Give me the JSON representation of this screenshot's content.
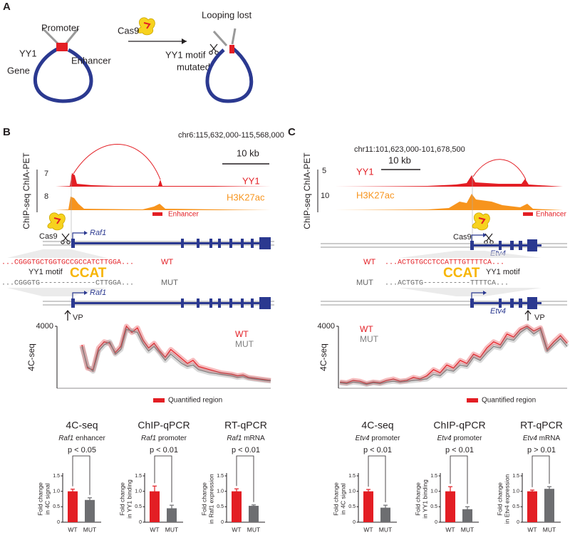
{
  "panel_a": {
    "label": "A",
    "promoter": "Promoter",
    "yy1": "YY1",
    "enhancer": "Enhancer",
    "gene": "Gene",
    "cas9": "Cas9",
    "looping_lost": "Looping lost",
    "motif_mutated": [
      "YY1 motif",
      "mutated"
    ]
  },
  "panel_b": {
    "label": "B",
    "coords": "chr6:115,632,000-115,568,000",
    "scale": "10 kb",
    "track_axis": "ChIP-seq ChIA-PET",
    "tracks": [
      {
        "name": "YY1",
        "scale": "7"
      },
      {
        "name": "H3K27ac",
        "scale": "8"
      }
    ],
    "enhancer": "Enhancer",
    "cas9": "Cas9",
    "gene": [
      "Raf1",
      "Raf1"
    ],
    "wt_label": "WT",
    "mut_label": "MUT",
    "wt_seq": "...CGGGTGCTGGTGCCGCCATCTTGGA...",
    "mut_seq": "...CGGGTG-------------CTTGGA...",
    "motif": "YY1 motif",
    "logo": "CCAT",
    "vp": "VP",
    "quantified": "Quantified region"
  },
  "panel_c": {
    "label": "C",
    "coords": "chr11:101,623,000-101,678,500",
    "scale": "10 kb",
    "track_axis": "ChIP-seq ChIA-PET",
    "tracks": [
      {
        "name": "YY1",
        "scale": "5"
      },
      {
        "name": "H3K27ac",
        "scale": "10"
      }
    ],
    "enhancer": "Enhancer",
    "cas9": "Cas9",
    "gene": [
      "Etv4",
      "Etv4"
    ],
    "wt_label": "WT",
    "mut_label": "MUT",
    "wt_seq": "...ACTGTGCCTCCATTTGTTTTCA...",
    "mut_seq": "...ACTGTG-----------TTTTCA...",
    "motif": "YY1 motif",
    "logo": "CCAT",
    "vp": "VP",
    "quantified": "Quantified region"
  },
  "chart_data": [
    {
      "type": "line",
      "ylabel": "4C-seq",
      "ylim": [
        0,
        4000
      ],
      "yticks": [
        4000
      ],
      "series": [
        {
          "name": "WT",
          "color": "#e31e24",
          "values": [
            2800,
            1300,
            1200,
            2600,
            3000,
            2900,
            2300,
            2700,
            4000,
            3600,
            3900,
            3100,
            2600,
            2900,
            2400,
            2000,
            2500,
            2200,
            1900,
            1600,
            1800,
            1400,
            1300,
            1200,
            1100,
            1000,
            950,
            900,
            800,
            850,
            700,
            650,
            600,
            550,
            500
          ]
        },
        {
          "name": "MUT",
          "color": "#808080",
          "values": [
            2700,
            1400,
            1100,
            2400,
            2800,
            3000,
            2200,
            2500,
            3800,
            3700,
            3600,
            2900,
            2400,
            2700,
            2300,
            1800,
            2200,
            1900,
            1600,
            1400,
            1500,
            1200,
            1100,
            1000,
            950,
            900,
            850,
            800,
            700,
            750,
            650,
            600,
            550,
            500,
            480
          ]
        }
      ]
    },
    {
      "type": "line",
      "ylabel": "4C-seq",
      "ylim": [
        0,
        4000
      ],
      "yticks": [
        4000
      ],
      "series": [
        {
          "name": "WT",
          "color": "#e31e24",
          "values": [
            400,
            350,
            500,
            450,
            300,
            400,
            350,
            500,
            600,
            450,
            500,
            700,
            600,
            800,
            1200,
            1000,
            1500,
            1300,
            1800,
            1600,
            2200,
            2000,
            2600,
            3000,
            2800,
            3500,
            3300,
            3800,
            4000,
            3700,
            3900,
            2500,
            3000,
            3400,
            2900
          ]
        },
        {
          "name": "MUT",
          "color": "#808080",
          "values": [
            350,
            300,
            400,
            350,
            250,
            350,
            300,
            400,
            450,
            400,
            450,
            500,
            550,
            600,
            900,
            800,
            1200,
            1100,
            1500,
            1400,
            2000,
            1800,
            2300,
            2700,
            2600,
            3200,
            3100,
            3600,
            3900,
            3500,
            3800,
            2400,
            2800,
            3200,
            2700
          ]
        }
      ]
    },
    {
      "type": "bar",
      "title": "4C-seq",
      "subtitle_gene": "Raf1",
      "subtitle": "enhancer",
      "annotation": "p < 0.05",
      "ylabel": [
        "Fold change",
        "in 4C signal"
      ],
      "categories": [
        "WT",
        "MUT"
      ],
      "values": [
        1.0,
        0.72
      ],
      "errors": [
        0.07,
        0.07
      ],
      "colors": [
        "#e31e24",
        "#6d6e71"
      ],
      "ylim": [
        0,
        1.5
      ],
      "yticks": [
        0,
        0.5,
        {
          "value": 1,
          "label": "1.0"
        },
        1.5
      ]
    },
    {
      "type": "bar",
      "title": "ChIP-qPCR",
      "subtitle_gene": "Raf1",
      "subtitle": "promoter",
      "annotation": "p < 0.01",
      "ylabel": [
        "Fold change",
        "in YY1 binding"
      ],
      "categories": [
        "WT",
        "MUT"
      ],
      "values": [
        1.0,
        0.45
      ],
      "errors": [
        0.17,
        0.1
      ],
      "colors": [
        "#e31e24",
        "#6d6e71"
      ],
      "ylim": [
        0,
        1.5
      ],
      "yticks": [
        0,
        0.5,
        {
          "value": 1,
          "label": "1.0"
        },
        1.5
      ]
    },
    {
      "type": "bar",
      "title": "RT-qPCR",
      "subtitle_gene": "Raf1",
      "subtitle": "mRNA",
      "annotation": "p < 0.01",
      "ylabel": [
        "Fold change",
        "in Raf1 expression"
      ],
      "categories": [
        "WT",
        "MUT"
      ],
      "values": [
        1.0,
        0.53
      ],
      "errors": [
        0.08,
        0.03
      ],
      "colors": [
        "#e31e24",
        "#6d6e71"
      ],
      "ylim": [
        0,
        1.5
      ],
      "yticks": [
        0,
        0.5,
        {
          "value": 1,
          "label": "1.0"
        },
        1.5
      ]
    },
    {
      "type": "bar",
      "title": "4C-seq",
      "subtitle_gene": "Etv4",
      "subtitle": "promoter",
      "annotation": "p < 0.01",
      "ylabel": [
        "Fold change",
        "in 4C signal"
      ],
      "categories": [
        "WT",
        "MUT"
      ],
      "values": [
        1.0,
        0.47
      ],
      "errors": [
        0.06,
        0.08
      ],
      "colors": [
        "#e31e24",
        "#6d6e71"
      ],
      "ylim": [
        0,
        1.5
      ],
      "yticks": [
        0,
        0.5,
        {
          "value": 1,
          "label": "1.0"
        },
        1.5
      ]
    },
    {
      "type": "bar",
      "title": "ChIP-qPCR",
      "subtitle_gene": "Etv4",
      "subtitle": "promoter",
      "annotation": "p < 0.01",
      "ylabel": [
        "Fold change",
        "in YY1 binding"
      ],
      "categories": [
        "WT",
        "MUT"
      ],
      "values": [
        1.0,
        0.42
      ],
      "errors": [
        0.15,
        0.08
      ],
      "colors": [
        "#e31e24",
        "#6d6e71"
      ],
      "ylim": [
        0,
        1.5
      ],
      "yticks": [
        0,
        0.5,
        {
          "value": 1,
          "label": "1.0"
        },
        1.5
      ]
    },
    {
      "type": "bar",
      "title": "RT-qPCR",
      "subtitle_gene": "Etv4",
      "subtitle": "mRNA",
      "annotation": "p > 0.01",
      "ylabel": [
        "Fold change",
        "in Etv4 expression"
      ],
      "categories": [
        "WT",
        "MUT"
      ],
      "values": [
        1.0,
        1.08
      ],
      "errors": [
        0.04,
        0.07
      ],
      "colors": [
        "#e31e24",
        "#6d6e71"
      ],
      "ylim": [
        0,
        1.5
      ],
      "yticks": [
        0,
        0.5,
        {
          "value": 1,
          "label": "1.0"
        },
        1.5
      ]
    }
  ]
}
